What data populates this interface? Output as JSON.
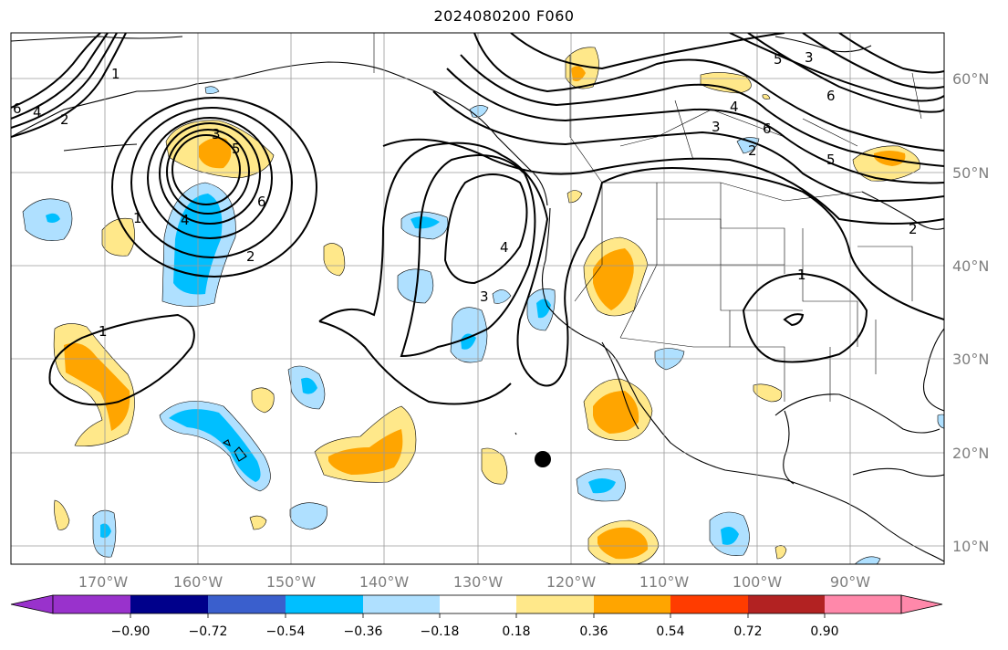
{
  "title": "2024080200 F060",
  "lon_labels": [
    "170°W",
    "160°W",
    "150°W",
    "140°W",
    "130°W",
    "120°W",
    "110°W",
    "100°W",
    "90°W"
  ],
  "lat_labels": [
    "60°N",
    "50°N",
    "40°N",
    "30°N",
    "20°N",
    "10°N"
  ],
  "colorbar": {
    "ticks": [
      "−0.90",
      "−0.72",
      "−0.54",
      "−0.36",
      "−0.18",
      "0.18",
      "0.36",
      "0.54",
      "0.72",
      "0.90"
    ],
    "colors": [
      "#9932cc",
      "#00008b",
      "#3a5fcd",
      "#00bfff",
      "#afe0ff",
      "#ffffff",
      "#ffe88a",
      "#ffa500",
      "#ff3c00",
      "#b22222",
      "#ff88aa"
    ]
  },
  "contour_labels": [
    "6",
    "4",
    "2",
    "1",
    "3",
    "5",
    "6",
    "4",
    "2",
    "1",
    "1",
    "3",
    "4",
    "2",
    "3",
    "6",
    "5",
    "4",
    "6",
    "1",
    "2",
    "3",
    "5"
  ],
  "marker": "storm-center-dot"
}
